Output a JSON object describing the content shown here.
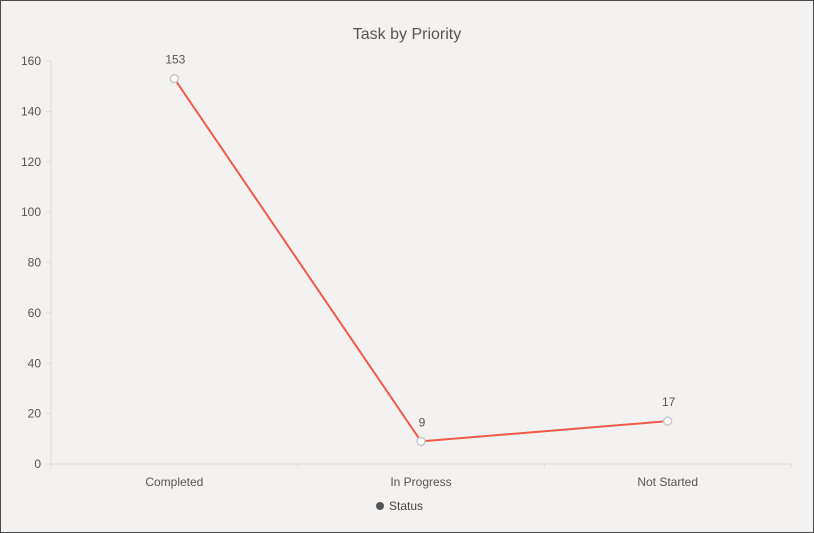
{
  "chart_data": {
    "type": "line",
    "title": "Task by Priority",
    "categories": [
      "Completed",
      "In Progress",
      "Not Started"
    ],
    "series": [
      {
        "name": "Status",
        "values": [
          153,
          9,
          17
        ],
        "color": "#f05a4a"
      }
    ],
    "data_labels": [
      "153",
      "9",
      "17"
    ],
    "ylim": [
      0,
      160
    ],
    "yticks": [
      0,
      20,
      40,
      60,
      80,
      100,
      120,
      140,
      160
    ],
    "ytick_labels": [
      "0",
      "20",
      "40",
      "60",
      "80",
      "100",
      "120",
      "140",
      "160"
    ],
    "xlabel": "",
    "ylabel": "",
    "legend": "bottom-center",
    "legend_marker_color": "#555555",
    "grid": false,
    "marker_fill": "#ffffff",
    "marker_stroke": "#c8c8c8"
  }
}
